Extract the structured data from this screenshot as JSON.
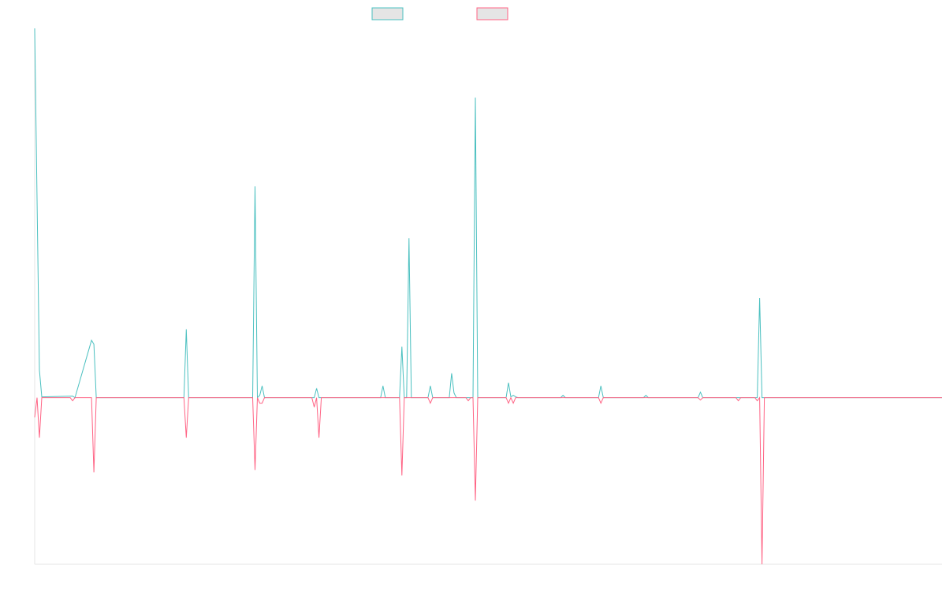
{
  "chart_data": {
    "type": "line",
    "title": "",
    "xlabel": "",
    "ylabel": "",
    "ylim": [
      -212,
      470
    ],
    "grid": false,
    "legend_position": "top-center",
    "x_count": 383,
    "series": [
      {
        "color": "#4bc0c0",
        "fill": "#e5e5e5",
        "points": [
          [
            0,
            470
          ],
          [
            2,
            35
          ],
          [
            3,
            1
          ],
          [
            16,
            2
          ],
          [
            17,
            0
          ],
          [
            24,
            73
          ],
          [
            25,
            68
          ],
          [
            26,
            0
          ],
          [
            63,
            0
          ],
          [
            64,
            87
          ],
          [
            65,
            0
          ],
          [
            92,
            0
          ],
          [
            93,
            269
          ],
          [
            94,
            0
          ],
          [
            95,
            3
          ],
          [
            96,
            15
          ],
          [
            97,
            0
          ],
          [
            118,
            0
          ],
          [
            119,
            12
          ],
          [
            120,
            0
          ],
          [
            146,
            0
          ],
          [
            147,
            15
          ],
          [
            148,
            0
          ],
          [
            154,
            0
          ],
          [
            155,
            65
          ],
          [
            156,
            0
          ],
          [
            157,
            0
          ],
          [
            158,
            203
          ],
          [
            159,
            0
          ],
          [
            166,
            0
          ],
          [
            167,
            15
          ],
          [
            168,
            0
          ],
          [
            175,
            0
          ],
          [
            176,
            31
          ],
          [
            177,
            6
          ],
          [
            178,
            0
          ],
          [
            185,
            0
          ],
          [
            186,
            382
          ],
          [
            187,
            0
          ],
          [
            199,
            0
          ],
          [
            200,
            19
          ],
          [
            201,
            1
          ],
          [
            202,
            3
          ],
          [
            203,
            1
          ],
          [
            204,
            0
          ],
          [
            222,
            0
          ],
          [
            223,
            3
          ],
          [
            224,
            0
          ],
          [
            238,
            0
          ],
          [
            239,
            15
          ],
          [
            240,
            0
          ],
          [
            257,
            0
          ],
          [
            258,
            3
          ],
          [
            259,
            0
          ],
          [
            280,
            0
          ],
          [
            281,
            7
          ],
          [
            282,
            0
          ],
          [
            305,
            0
          ],
          [
            306,
            127
          ],
          [
            307,
            0
          ],
          [
            383,
            0
          ]
        ]
      },
      {
        "color": "#ff6384",
        "fill": "#e5e5e5",
        "points": [
          [
            0,
            -25
          ],
          [
            1,
            0
          ],
          [
            2,
            -51
          ],
          [
            3,
            0
          ],
          [
            15,
            0
          ],
          [
            16,
            -4
          ],
          [
            17,
            0
          ],
          [
            24,
            0
          ],
          [
            25,
            -95
          ],
          [
            26,
            0
          ],
          [
            63,
            0
          ],
          [
            64,
            -51
          ],
          [
            65,
            0
          ],
          [
            92,
            0
          ],
          [
            93,
            -92
          ],
          [
            94,
            0
          ],
          [
            95,
            -7
          ],
          [
            96,
            -7
          ],
          [
            97,
            0
          ],
          [
            117,
            0
          ],
          [
            118,
            -12
          ],
          [
            119,
            0
          ],
          [
            120,
            -51
          ],
          [
            121,
            0
          ],
          [
            154,
            0
          ],
          [
            155,
            -99
          ],
          [
            156,
            0
          ],
          [
            166,
            0
          ],
          [
            167,
            -7
          ],
          [
            168,
            0
          ],
          [
            182,
            0
          ],
          [
            183,
            -4
          ],
          [
            184,
            0
          ],
          [
            185,
            0
          ],
          [
            186,
            -131
          ],
          [
            187,
            0
          ],
          [
            199,
            0
          ],
          [
            200,
            -7
          ],
          [
            201,
            0
          ],
          [
            202,
            -7
          ],
          [
            203,
            0
          ],
          [
            238,
            0
          ],
          [
            239,
            -7
          ],
          [
            240,
            0
          ],
          [
            280,
            0
          ],
          [
            281,
            -3
          ],
          [
            282,
            0
          ],
          [
            296,
            0
          ],
          [
            297,
            -4
          ],
          [
            298,
            0
          ],
          [
            304,
            0
          ],
          [
            305,
            -4
          ],
          [
            306,
            0
          ],
          [
            307,
            -212
          ],
          [
            308,
            0
          ],
          [
            383,
            0
          ]
        ]
      }
    ]
  }
}
